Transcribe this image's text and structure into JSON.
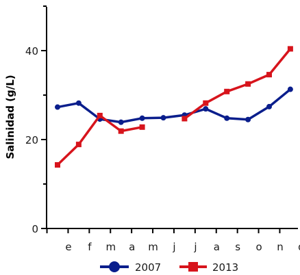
{
  "chart_data": {
    "type": "line",
    "title": "",
    "xlabel": "",
    "ylabel": "Salinidad (g/L)",
    "categories": [
      "e",
      "f",
      "m",
      "a",
      "m",
      "j",
      "j",
      "a",
      "s",
      "o",
      "n",
      "d"
    ],
    "ylim": [
      0,
      50
    ],
    "yticks": [
      0,
      20,
      40
    ],
    "grid": false,
    "legend_position": "bottom",
    "series": [
      {
        "name": "2007",
        "color": "#0a1e8c",
        "marker": "circle",
        "values": [
          27.3,
          28.2,
          24.6,
          23.9,
          24.8,
          24.9,
          25.5,
          26.9,
          24.8,
          24.5,
          27.4,
          31.3
        ]
      },
      {
        "name": "2013",
        "color": "#d7141c",
        "marker": "square",
        "values": [
          14.3,
          18.9,
          25.4,
          21.9,
          22.8,
          null,
          24.7,
          28.2,
          30.8,
          32.5,
          34.6,
          40.4
        ]
      }
    ]
  }
}
